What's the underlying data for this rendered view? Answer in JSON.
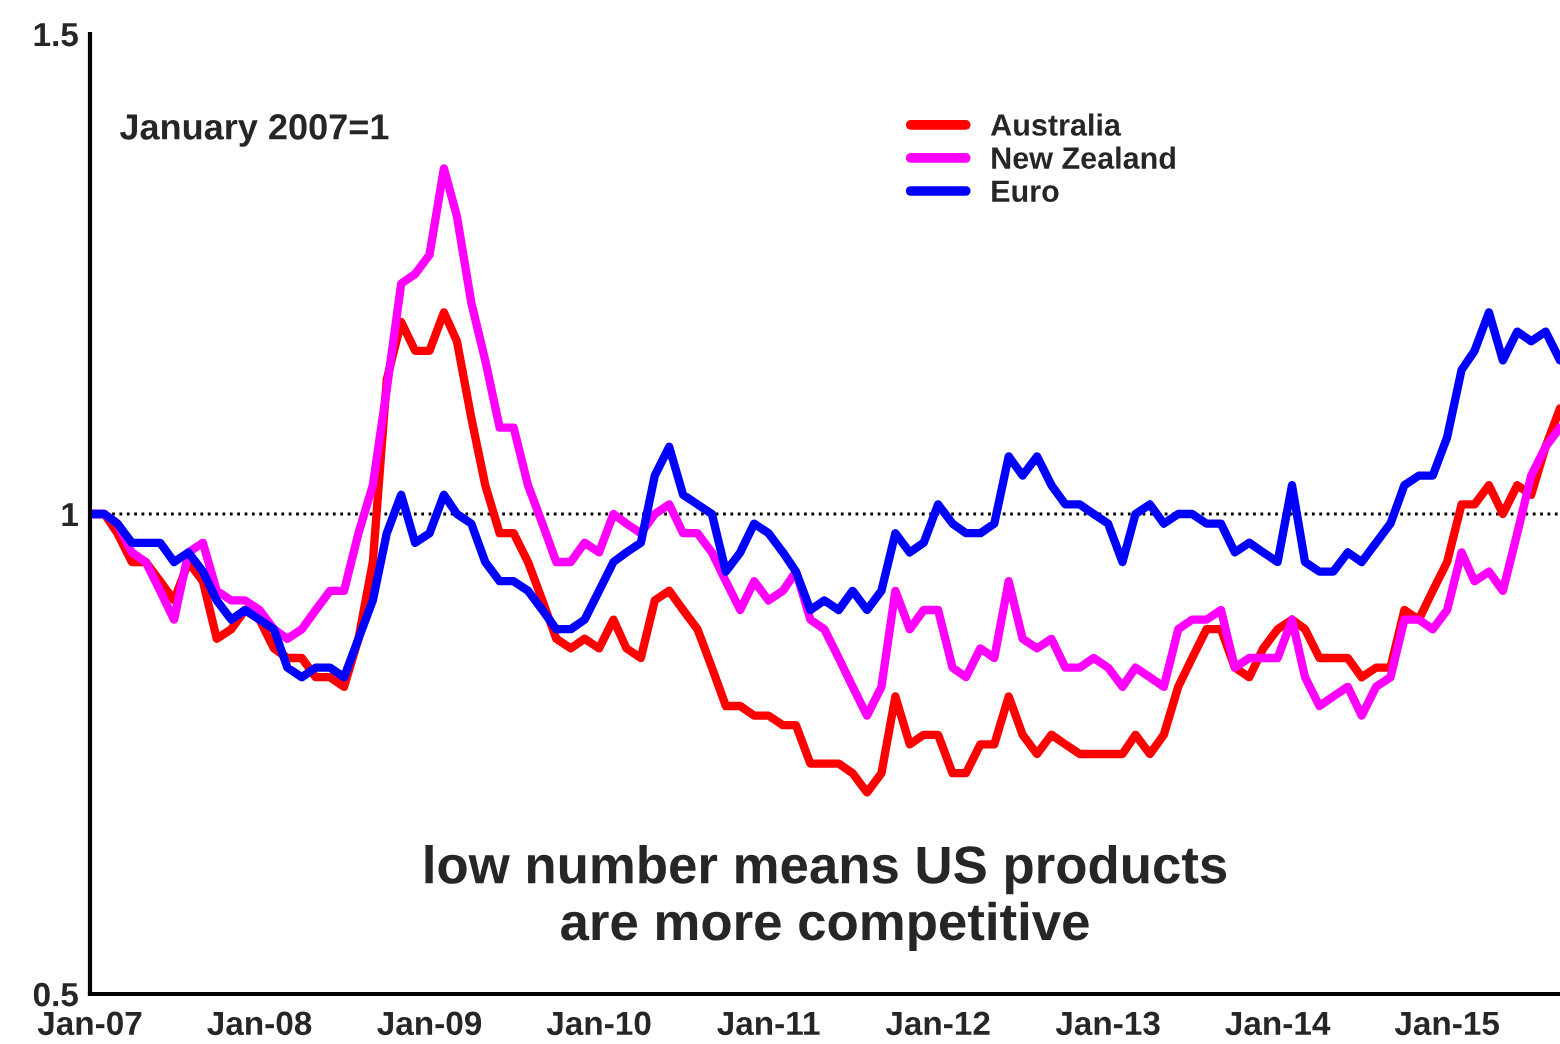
{
  "chart_data": {
    "type": "line",
    "annotations": [
      "January 2007=1",
      "low number means US products\nare more competitive"
    ],
    "x": [
      "2007-01",
      "2007-02",
      "2007-03",
      "2007-04",
      "2007-05",
      "2007-06",
      "2007-07",
      "2007-08",
      "2007-09",
      "2007-10",
      "2007-11",
      "2007-12",
      "2008-01",
      "2008-02",
      "2008-03",
      "2008-04",
      "2008-05",
      "2008-06",
      "2008-07",
      "2008-08",
      "2008-09",
      "2008-10",
      "2008-11",
      "2008-12",
      "2009-01",
      "2009-02",
      "2009-03",
      "2009-04",
      "2009-05",
      "2009-06",
      "2009-07",
      "2009-08",
      "2009-09",
      "2009-10",
      "2009-11",
      "2009-12",
      "2010-01",
      "2010-02",
      "2010-03",
      "2010-04",
      "2010-05",
      "2010-06",
      "2010-07",
      "2010-08",
      "2010-09",
      "2010-10",
      "2010-11",
      "2010-12",
      "2011-01",
      "2011-02",
      "2011-03",
      "2011-04",
      "2011-05",
      "2011-06",
      "2011-07",
      "2011-08",
      "2011-09",
      "2011-10",
      "2011-11",
      "2011-12",
      "2012-01",
      "2012-02",
      "2012-03",
      "2012-04",
      "2012-05",
      "2012-06",
      "2012-07",
      "2012-08",
      "2012-09",
      "2012-10",
      "2012-11",
      "2012-12",
      "2013-01",
      "2013-02",
      "2013-03",
      "2013-04",
      "2013-05",
      "2013-06",
      "2013-07",
      "2013-08",
      "2013-09",
      "2013-10",
      "2013-11",
      "2013-12",
      "2014-01",
      "2014-02",
      "2014-03",
      "2014-04",
      "2014-05",
      "2014-06",
      "2014-07",
      "2014-08",
      "2014-09",
      "2014-10",
      "2014-11",
      "2014-12",
      "2015-01",
      "2015-02",
      "2015-03",
      "2015-04",
      "2015-05",
      "2015-06",
      "2015-07",
      "2015-08",
      "2015-09"
    ],
    "series": [
      {
        "name": "Australia",
        "color": "#ff0000",
        "values": [
          1.0,
          1.0,
          0.98,
          0.95,
          0.95,
          0.93,
          0.91,
          0.95,
          0.93,
          0.87,
          0.88,
          0.9,
          0.89,
          0.86,
          0.85,
          0.85,
          0.83,
          0.83,
          0.82,
          0.87,
          0.95,
          1.14,
          1.2,
          1.17,
          1.17,
          1.21,
          1.18,
          1.1,
          1.03,
          0.98,
          0.98,
          0.95,
          0.91,
          0.87,
          0.86,
          0.87,
          0.86,
          0.89,
          0.86,
          0.85,
          0.91,
          0.92,
          0.9,
          0.88,
          0.84,
          0.8,
          0.8,
          0.79,
          0.79,
          0.78,
          0.78,
          0.74,
          0.74,
          0.74,
          0.73,
          0.71,
          0.73,
          0.81,
          0.76,
          0.77,
          0.77,
          0.73,
          0.73,
          0.76,
          0.76,
          0.81,
          0.77,
          0.75,
          0.77,
          0.76,
          0.75,
          0.75,
          0.75,
          0.75,
          0.77,
          0.75,
          0.77,
          0.82,
          0.85,
          0.88,
          0.88,
          0.84,
          0.83,
          0.86,
          0.88,
          0.89,
          0.88,
          0.85,
          0.85,
          0.85,
          0.83,
          0.84,
          0.84,
          0.9,
          0.89,
          0.92,
          0.95,
          1.01,
          1.01,
          1.03,
          1.0,
          1.03,
          1.02,
          1.07,
          1.11
        ]
      },
      {
        "name": "New Zealand",
        "color": "#ff00ff",
        "values": [
          1.0,
          1.0,
          0.99,
          0.96,
          0.95,
          0.92,
          0.89,
          0.96,
          0.97,
          0.92,
          0.91,
          0.91,
          0.9,
          0.88,
          0.87,
          0.88,
          0.9,
          0.92,
          0.92,
          0.98,
          1.03,
          1.13,
          1.24,
          1.25,
          1.27,
          1.36,
          1.31,
          1.22,
          1.16,
          1.09,
          1.09,
          1.03,
          0.99,
          0.95,
          0.95,
          0.97,
          0.96,
          1.0,
          0.99,
          0.98,
          1.0,
          1.01,
          0.98,
          0.98,
          0.96,
          0.93,
          0.9,
          0.93,
          0.91,
          0.92,
          0.94,
          0.89,
          0.88,
          0.85,
          0.82,
          0.79,
          0.82,
          0.92,
          0.88,
          0.9,
          0.9,
          0.84,
          0.83,
          0.86,
          0.85,
          0.93,
          0.87,
          0.86,
          0.87,
          0.84,
          0.84,
          0.85,
          0.84,
          0.82,
          0.84,
          0.83,
          0.82,
          0.88,
          0.89,
          0.89,
          0.9,
          0.84,
          0.85,
          0.85,
          0.85,
          0.89,
          0.83,
          0.8,
          0.81,
          0.82,
          0.79,
          0.82,
          0.83,
          0.89,
          0.89,
          0.88,
          0.9,
          0.96,
          0.93,
          0.94,
          0.92,
          0.98,
          1.04,
          1.07,
          1.09
        ]
      },
      {
        "name": "Euro",
        "color": "#0000ff",
        "values": [
          1.0,
          1.0,
          0.99,
          0.97,
          0.97,
          0.97,
          0.95,
          0.96,
          0.94,
          0.91,
          0.89,
          0.9,
          0.89,
          0.88,
          0.84,
          0.83,
          0.84,
          0.84,
          0.83,
          0.87,
          0.91,
          0.98,
          1.02,
          0.97,
          0.98,
          1.02,
          1.0,
          0.99,
          0.95,
          0.93,
          0.93,
          0.92,
          0.9,
          0.88,
          0.88,
          0.89,
          0.92,
          0.95,
          0.96,
          0.97,
          1.04,
          1.07,
          1.02,
          1.01,
          1.0,
          0.94,
          0.96,
          0.99,
          0.98,
          0.96,
          0.94,
          0.9,
          0.91,
          0.9,
          0.92,
          0.9,
          0.92,
          0.98,
          0.96,
          0.97,
          1.01,
          0.99,
          0.98,
          0.98,
          0.99,
          1.06,
          1.04,
          1.06,
          1.03,
          1.01,
          1.01,
          1.0,
          0.99,
          0.95,
          1.0,
          1.01,
          0.99,
          1.0,
          1.0,
          0.99,
          0.99,
          0.96,
          0.97,
          0.96,
          0.95,
          1.03,
          0.95,
          0.94,
          0.94,
          0.96,
          0.95,
          0.97,
          0.99,
          1.03,
          1.04,
          1.04,
          1.08,
          1.15,
          1.17,
          1.21,
          1.16,
          1.19,
          1.18,
          1.19,
          1.16
        ]
      }
    ],
    "xlim": [
      "2007-01",
      "2015-09"
    ],
    "xticks": [
      {
        "value": "2007-01",
        "label": "Jan-07"
      },
      {
        "value": "2008-01",
        "label": "Jan-08"
      },
      {
        "value": "2009-01",
        "label": "Jan-09"
      },
      {
        "value": "2010-01",
        "label": "Jan-10"
      },
      {
        "value": "2011-01",
        "label": "Jan-11"
      },
      {
        "value": "2012-01",
        "label": "Jan-12"
      },
      {
        "value": "2013-01",
        "label": "Jan-13"
      },
      {
        "value": "2014-01",
        "label": "Jan-14"
      },
      {
        "value": "2015-01",
        "label": "Jan-15"
      }
    ],
    "ylim": [
      0.5,
      1.5
    ],
    "yticks": [
      0.5,
      1,
      1.5
    ],
    "ref_lines": [
      {
        "axis": "y",
        "value": 1,
        "label": null,
        "color": "#000000",
        "line_style": "dotted"
      }
    ],
    "legend": "top",
    "grid": false,
    "line_style": "solid",
    "marker": "none"
  }
}
